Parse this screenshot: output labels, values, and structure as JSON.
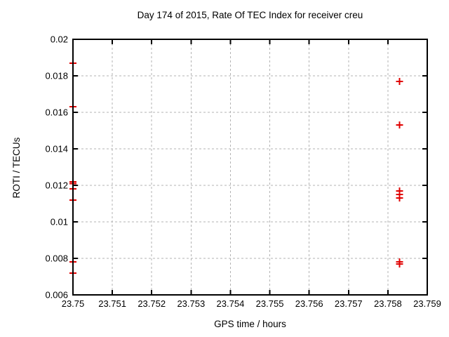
{
  "chart_data": {
    "type": "scatter",
    "title": "Day 174 of 2015, Rate Of TEC Index for receiver creu",
    "xlabel": "GPS time / hours",
    "ylabel": "ROTI / TECUs",
    "xlim": [
      23.75,
      23.759
    ],
    "ylim": [
      0.006,
      0.02
    ],
    "grid": true,
    "legend": "none",
    "marker": "plus",
    "colors": {
      "marker": "#e00000",
      "grid": "#b3b3b3",
      "border": "#000000",
      "text": "#000000",
      "background": "#ffffff"
    },
    "xticks": {
      "values": [
        23.75,
        23.751,
        23.752,
        23.753,
        23.754,
        23.755,
        23.756,
        23.757,
        23.758,
        23.759
      ],
      "labels": [
        "23.75",
        "23.751",
        "23.752",
        "23.753",
        "23.754",
        "23.755",
        "23.756",
        "23.757",
        "23.758",
        "23.759"
      ]
    },
    "yticks": {
      "values": [
        0.006,
        0.008,
        0.01,
        0.012,
        0.014,
        0.016,
        0.018,
        0.02
      ],
      "labels": [
        "0.006",
        "0.008",
        "0.01",
        "0.012",
        "0.014",
        "0.016",
        "0.018",
        "0.02"
      ]
    },
    "series": [
      {
        "name": "ROTI",
        "points": [
          [
            23.75,
            0.0187
          ],
          [
            23.75,
            0.0163
          ],
          [
            23.75,
            0.0122
          ],
          [
            23.75,
            0.0121
          ],
          [
            23.75,
            0.0118
          ],
          [
            23.75,
            0.0112
          ],
          [
            23.75,
            0.0078
          ],
          [
            23.75,
            0.0072
          ],
          [
            23.7583,
            0.0177
          ],
          [
            23.7583,
            0.0153
          ],
          [
            23.7583,
            0.0117
          ],
          [
            23.7583,
            0.0115
          ],
          [
            23.7583,
            0.0113
          ],
          [
            23.7583,
            0.0078
          ],
          [
            23.7583,
            0.0077
          ]
        ]
      }
    ]
  }
}
